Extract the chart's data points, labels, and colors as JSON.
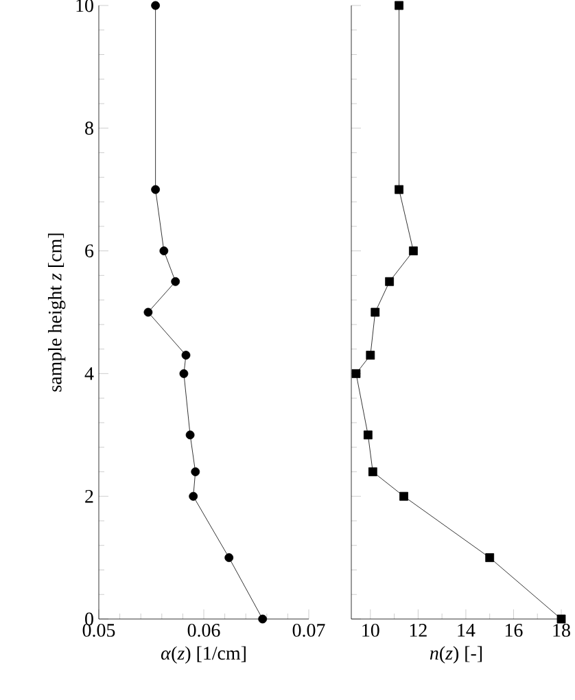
{
  "chart_data": [
    {
      "type": "line",
      "xlabel": "*α*(*z*) [1/cm]",
      "ylabel": "sample height *z* [cm]",
      "marker": "circle",
      "line_style": "solid",
      "color": "#000000",
      "x": [
        0.0554,
        0.0554,
        0.0562,
        0.0573,
        0.0547,
        0.0583,
        0.0581,
        0.0587,
        0.0592,
        0.059,
        0.0624,
        0.0656
      ],
      "values": [
        10,
        7,
        6,
        5.5,
        5,
        4.3,
        4,
        3,
        2.4,
        2,
        1,
        0
      ],
      "xlim": [
        0.05,
        0.07
      ],
      "xticks": [
        0.05,
        0.06,
        0.07
      ],
      "ylim": [
        0,
        10
      ],
      "yticks": [
        0,
        2,
        4,
        6,
        8,
        10
      ]
    },
    {
      "type": "line",
      "xlabel": "*n*(*z*) [-]",
      "marker": "square",
      "line_style": "solid",
      "color": "#000000",
      "x": [
        11.2,
        11.2,
        11.8,
        10.8,
        10.2,
        10.0,
        9.4,
        9.9,
        10.1,
        11.4,
        15.0,
        18.0
      ],
      "values": [
        10,
        7,
        6,
        5.5,
        5,
        4.3,
        4,
        3,
        2.4,
        2,
        1,
        0
      ],
      "xlim": [
        9.2,
        18
      ],
      "xticks": [
        10,
        12,
        14,
        16,
        18
      ],
      "ylim": [
        0,
        10
      ],
      "yticks": [
        0,
        2,
        4,
        6,
        8,
        10
      ],
      "tick_labels": "x"
    }
  ]
}
